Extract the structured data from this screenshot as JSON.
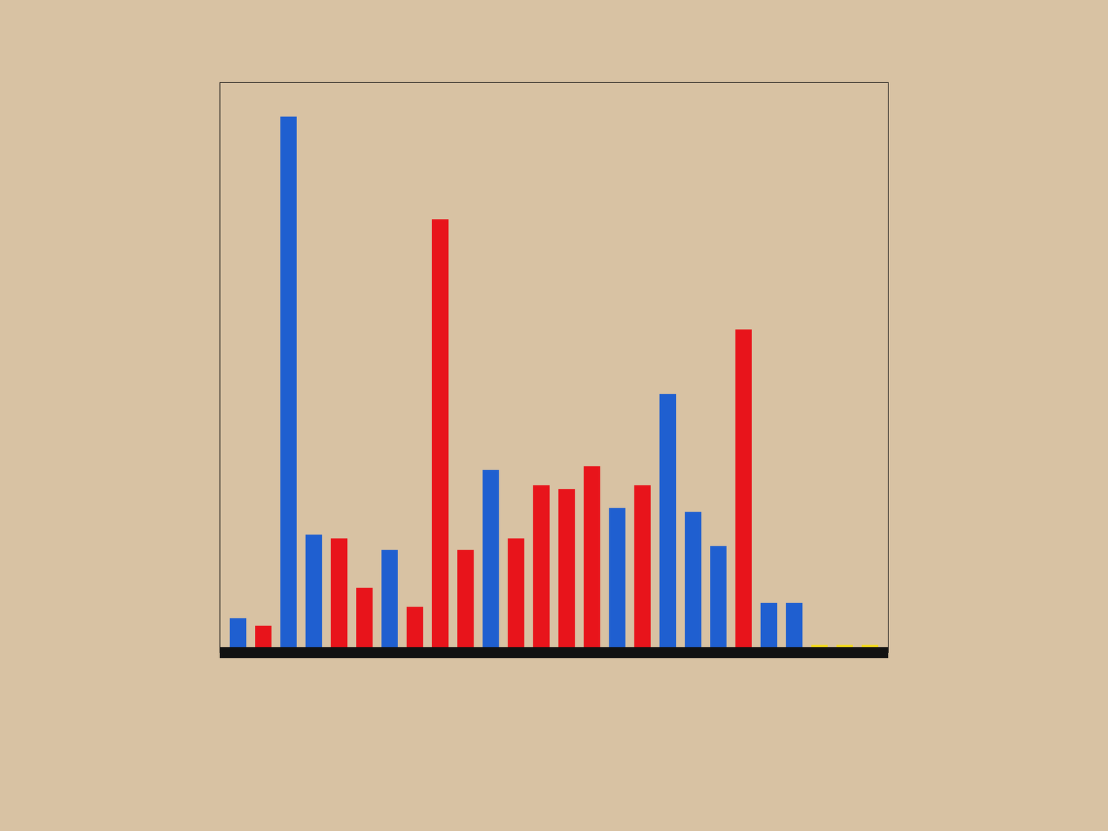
{
  "chart_data": {
    "type": "bar",
    "categories": [
      null,
      null,
      null,
      null,
      null,
      null,
      null,
      null,
      null,
      null,
      null,
      null,
      null,
      null,
      null,
      null,
      null,
      null,
      null,
      null,
      null,
      null,
      null,
      null,
      null,
      null
    ],
    "values": [
      45,
      35,
      705,
      155,
      150,
      85,
      135,
      60,
      570,
      135,
      240,
      150,
      220,
      215,
      245,
      190,
      220,
      340,
      185,
      140,
      425,
      65,
      65,
      10,
      10,
      10
    ],
    "colors": [
      "#1f5fd0",
      "#e8141b",
      "#1f5fd0",
      "#1f5fd0",
      "#e8141b",
      "#e8141b",
      "#1f5fd0",
      "#e8141b",
      "#e8141b",
      "#e8141b",
      "#1f5fd0",
      "#e8141b",
      "#e8141b",
      "#e8141b",
      "#e8141b",
      "#1f5fd0",
      "#e8141b",
      "#1f5fd0",
      "#1f5fd0",
      "#1f5fd0",
      "#e8141b",
      "#1f5fd0",
      "#1f5fd0",
      "#f5dc18",
      "#f5dc18",
      "#f5dc18"
    ],
    "ylim": [
      0,
      750
    ],
    "tick_labels": false
  }
}
